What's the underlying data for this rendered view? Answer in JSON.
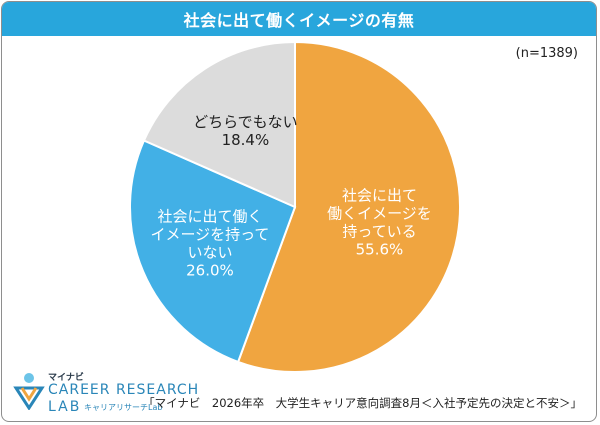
{
  "header": {
    "title": "社会に出て働くイメージの有無"
  },
  "sample_size": "(n=1389)",
  "source": "「マイナビ　2026年卒　大学生キャリア意向調査8月＜入社予定先の決定と不安＞」",
  "logo": {
    "brand": "マイナビ",
    "line1": "CAREER RESEARCH",
    "line2": "LAB",
    "sub": "キャリアリサーチLab"
  },
  "colors": {
    "title_bar": "#28a6dc",
    "slice_yes": "#f0a540",
    "slice_no": "#42b0e6",
    "slice_neither": "#dcdcdc"
  },
  "chart_data": {
    "type": "pie",
    "title": "社会に出て働くイメージの有無",
    "slices": [
      {
        "label": [
          "社会に出て",
          "働くイメージを",
          "持っている"
        ],
        "value": 55.6,
        "value_label": "55.6%",
        "color": "#f0a540",
        "text_color": "#ffffff"
      },
      {
        "label": [
          "社会に出て働く",
          "イメージを持って",
          "いない"
        ],
        "value": 26.0,
        "value_label": "26.0%",
        "color": "#42b0e6",
        "text_color": "#ffffff"
      },
      {
        "label": [
          "どちらでもない"
        ],
        "value": 18.4,
        "value_label": "18.4%",
        "color": "#dcdcdc",
        "text_color": "#222222"
      }
    ]
  }
}
